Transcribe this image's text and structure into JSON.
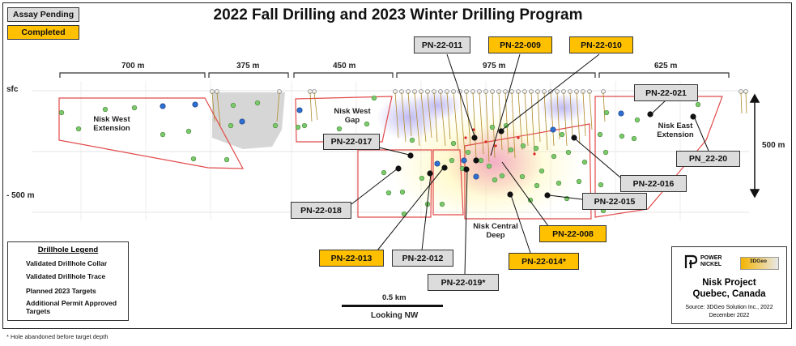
{
  "title": "2022 Fall Drilling and 2023 Winter Drilling Program",
  "status_key": {
    "pending": "Assay Pending",
    "completed": "Completed"
  },
  "segments": [
    "700 m",
    "375 m",
    "450 m",
    "975 m",
    "625 m"
  ],
  "depth": {
    "surface": "sfc",
    "depth_500": "- 500 m",
    "vertical_scale": "500 m"
  },
  "zones": {
    "nisk_west_extension": "Nisk West\nExtension",
    "nisk_west_gap": "Nisk West\nGap",
    "nisk_east_extension": "Nisk East\nExtension",
    "nisk_central_deep": "Nisk Central\nDeep"
  },
  "holes": {
    "pn_22_011": "PN-22-011",
    "pn_22_009": "PN-22-009",
    "pn_22_010": "PN-22-010",
    "pn_22_021": "PN-22-021",
    "pn_22_017": "PN-22-017",
    "pn_22_20": "PN_22-20",
    "pn_22_016": "PN-22-016",
    "pn_22_015": "PN-22-015",
    "pn_22_018": "PN-22-018",
    "pn_22_008": "PN-22-008",
    "pn_22_013": "PN-22-013",
    "pn_22_012": "PN-22-012",
    "pn_22_014": "PN-22-014*",
    "pn_22_019": "PN-22-019*"
  },
  "legend": {
    "title": "Drillhole Legend",
    "collar": "Validated Drillhole Collar",
    "trace": "Validated Drillhole Trace",
    "planned": "Planned 2023 Targets",
    "permit": "Additional Permit Approved Targets"
  },
  "scale": {
    "distance": "0.5 km",
    "view": "Looking NW"
  },
  "info": {
    "logo_power": "POWER",
    "logo_nickel": "NICKEL",
    "logo_3dgeo": "3DGeo",
    "project": "Nisk Project",
    "location": "Quebec, Canada",
    "source": "Source: 3DGeo Solution Inc., 2022",
    "date": "December 2022"
  },
  "footnote": "* Hole abandoned before target depth",
  "colors": {
    "completed": "#ffc000",
    "pending": "#dcdcdc",
    "planned": "#2e6fd1",
    "permit": "#7cc96b",
    "outline": "#e24a4a"
  }
}
